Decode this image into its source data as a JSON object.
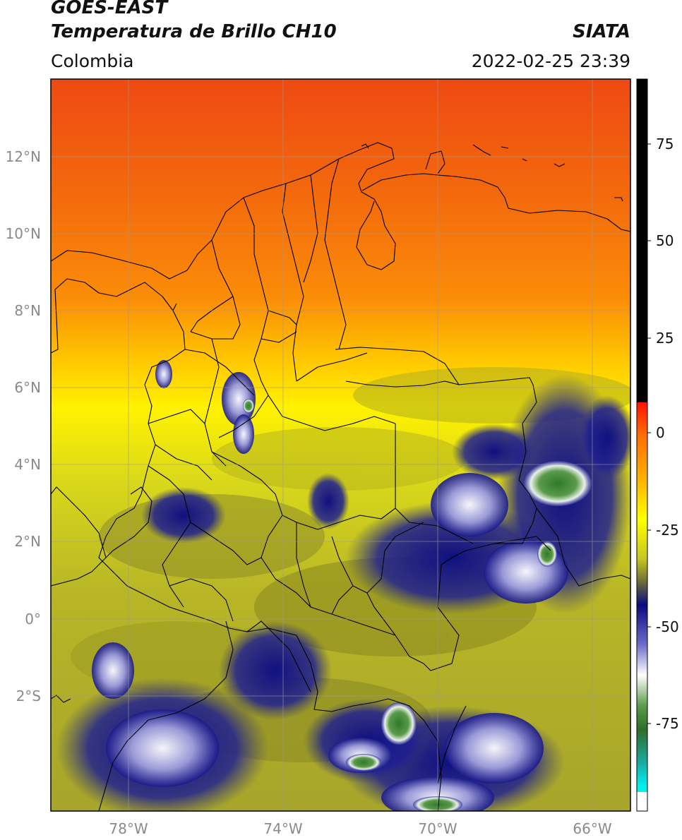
{
  "header": {
    "satellite": "GOES-EAST",
    "product": "Temperatura de Brillo CH10",
    "region": "Colombia",
    "source": "SIATA",
    "timestamp": "2022-02-25 23:39"
  },
  "map": {
    "lat_ticks": [
      "12°N",
      "10°N",
      "8°N",
      "6°N",
      "4°N",
      "2°N",
      "0°",
      "2°S"
    ],
    "lon_ticks": [
      "78°W",
      "74°W",
      "70°W",
      "66°W"
    ],
    "lat_range": [
      -4.8,
      14
    ],
    "lon_range": [
      -79.5,
      -64.5
    ],
    "grid": true
  },
  "colorbar": {
    "ticks": [
      "75",
      "50",
      "25",
      "0",
      "-25",
      "-50",
      "-75"
    ],
    "range": [
      -95,
      90
    ],
    "colors": {
      "warm_high": "#000000",
      "red": "#e8261b",
      "orange": "#ff7a00",
      "yellow": "#ffff00",
      "olive": "#8d8d1a",
      "navy": "#0a0a7a",
      "white": "#f4f4f4",
      "green": "#2e7d25",
      "teal": "#1ab39a",
      "cyan": "#00e5e5"
    }
  }
}
